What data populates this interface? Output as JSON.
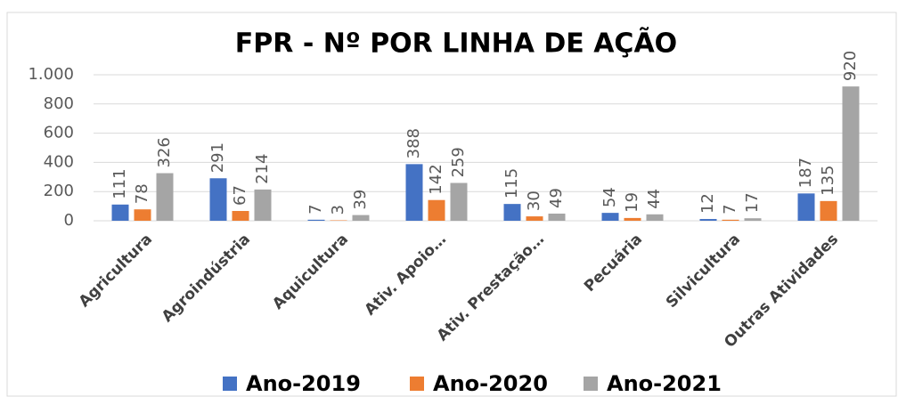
{
  "chart_data": {
    "type": "bar",
    "title": "FPR - Nº POR LINHA DE AÇÃO",
    "categories": [
      "Agricultura",
      "Agroindústria",
      "Aquicultura",
      "Ativ. Apoio…",
      "Ativ. Prestação…",
      "Pecuária",
      "Silvicultura",
      "Outras Atividades"
    ],
    "series": [
      {
        "name": "Ano-2019",
        "color": "#4472c4",
        "values": [
          111,
          291,
          7,
          388,
          115,
          54,
          12,
          187
        ]
      },
      {
        "name": "Ano-2020",
        "color": "#ed7d31",
        "values": [
          78,
          67,
          3,
          142,
          30,
          19,
          7,
          135
        ]
      },
      {
        "name": "Ano-2021",
        "color": "#a5a5a5",
        "values": [
          326,
          214,
          39,
          259,
          49,
          44,
          17,
          920
        ]
      }
    ],
    "ylim": [
      0,
      1000
    ],
    "yticks": [
      0,
      200,
      400,
      600,
      800,
      {
        "value": 1000,
        "label": "1.000"
      }
    ],
    "grid": true,
    "legend": "bottom"
  }
}
